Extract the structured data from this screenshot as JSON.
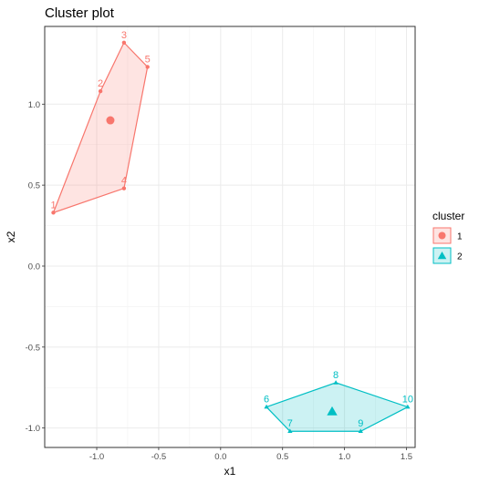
{
  "chart_data": {
    "type": "scatter",
    "title": "Cluster plot",
    "xlabel": "x1",
    "ylabel": "x2",
    "xlim": [
      -1.42,
      1.57
    ],
    "ylim": [
      -1.12,
      1.48
    ],
    "x_ticks": [
      -1.0,
      -0.5,
      0.0,
      0.5,
      1.0,
      1.5
    ],
    "x_tick_labels": [
      "-1.0",
      "-0.5",
      "0.0",
      "0.5",
      "1.0",
      "1.5"
    ],
    "y_ticks": [
      -1.0,
      -0.5,
      0.0,
      0.5,
      1.0
    ],
    "y_tick_labels": [
      "-1.0",
      "-0.5",
      "0.0",
      "0.5",
      "1.0"
    ],
    "grid": true,
    "legend": {
      "title": "cluster",
      "position": "right",
      "entries": [
        {
          "label": "1",
          "shape": "circle",
          "color": "#F8766D"
        },
        {
          "label": "2",
          "shape": "triangle",
          "color": "#00BFC4"
        }
      ]
    },
    "series": [
      {
        "name": "1",
        "color": "#F8766D",
        "shape": "circle",
        "points": [
          {
            "label": "1",
            "x": -1.35,
            "y": 0.33
          },
          {
            "label": "2",
            "x": -0.97,
            "y": 1.08
          },
          {
            "label": "3",
            "x": -0.78,
            "y": 1.38
          },
          {
            "label": "4",
            "x": -0.78,
            "y": 0.48
          },
          {
            "label": "5",
            "x": -0.59,
            "y": 1.23
          }
        ],
        "hull": [
          "1",
          "2",
          "3",
          "5",
          "4"
        ],
        "center": {
          "x": -0.89,
          "y": 0.9
        }
      },
      {
        "name": "2",
        "color": "#00BFC4",
        "shape": "triangle",
        "points": [
          {
            "label": "6",
            "x": 0.37,
            "y": -0.87
          },
          {
            "label": "7",
            "x": 0.56,
            "y": -1.02
          },
          {
            "label": "8",
            "x": 0.93,
            "y": -0.72
          },
          {
            "label": "9",
            "x": 1.13,
            "y": -1.02
          },
          {
            "label": "10",
            "x": 1.51,
            "y": -0.87
          }
        ],
        "hull": [
          "6",
          "8",
          "10",
          "9",
          "7"
        ],
        "center": {
          "x": 0.9,
          "y": -0.9
        }
      }
    ]
  }
}
